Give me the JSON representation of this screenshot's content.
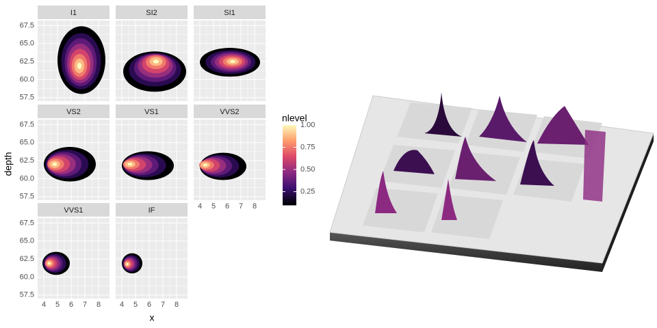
{
  "chart_data": {
    "type": "density2d",
    "xlabel": "x",
    "ylabel": "depth",
    "xlim": [
      3.55,
      8.8
    ],
    "ylim": [
      57.0,
      68.2
    ],
    "xticks": [
      4,
      5,
      6,
      7,
      8
    ],
    "yticks": [
      {
        "value": 57.5,
        "label": "57.5"
      },
      {
        "value": 60,
        "label": "60.0"
      },
      {
        "value": 62.5,
        "label": "62.5"
      },
      {
        "value": 65,
        "label": "65.0"
      },
      {
        "value": 67.5,
        "label": "67.5"
      }
    ],
    "grid": true,
    "legend": {
      "title": "nlevel",
      "ticks": [
        0.25,
        {
          "value": 0.5,
          "label": "0.50"
        },
        0.75,
        {
          "value": 1,
          "label": "1.00"
        }
      ],
      "lim": [
        0.1,
        1.0
      ]
    },
    "colormap": [
      "#000004",
      "#3b0f70",
      "#8c2981",
      "#de4968",
      "#fe9f6d",
      "#fcfdbf"
    ],
    "facets": [
      {
        "name": "I1",
        "xrange": [
          5.0,
          8.5
        ],
        "yrange": [
          58.0,
          67.4
        ],
        "peak": [
          6.6,
          61.9
        ]
      },
      {
        "name": "SI2",
        "xrange": [
          4.1,
          8.7
        ],
        "yrange": [
          58.3,
          63.9
        ],
        "peak": [
          6.5,
          62.5
        ]
      },
      {
        "name": "SI1",
        "xrange": [
          4.0,
          8.4
        ],
        "yrange": [
          60.4,
          64.4
        ],
        "peak": [
          6.4,
          62.5
        ]
      },
      {
        "name": "VS2",
        "xrange": [
          4.0,
          7.8
        ],
        "yrange": [
          59.6,
          64.4
        ],
        "peak": [
          4.8,
          62.0
        ]
      },
      {
        "name": "VS1",
        "xrange": [
          4.0,
          7.8
        ],
        "yrange": [
          59.8,
          63.8
        ],
        "peak": [
          4.6,
          62.0
        ]
      },
      {
        "name": "VVS2",
        "xrange": [
          4.0,
          7.4
        ],
        "yrange": [
          59.8,
          63.6
        ],
        "peak": [
          4.4,
          61.9
        ]
      },
      {
        "name": "VVS1",
        "xrange": [
          3.9,
          5.9
        ],
        "yrange": [
          60.3,
          63.5
        ],
        "peak": [
          4.4,
          61.9
        ]
      },
      {
        "name": "IF",
        "xrange": [
          4.0,
          5.5
        ],
        "yrange": [
          60.5,
          63.3
        ],
        "peak": [
          4.4,
          61.8
        ]
      }
    ]
  }
}
